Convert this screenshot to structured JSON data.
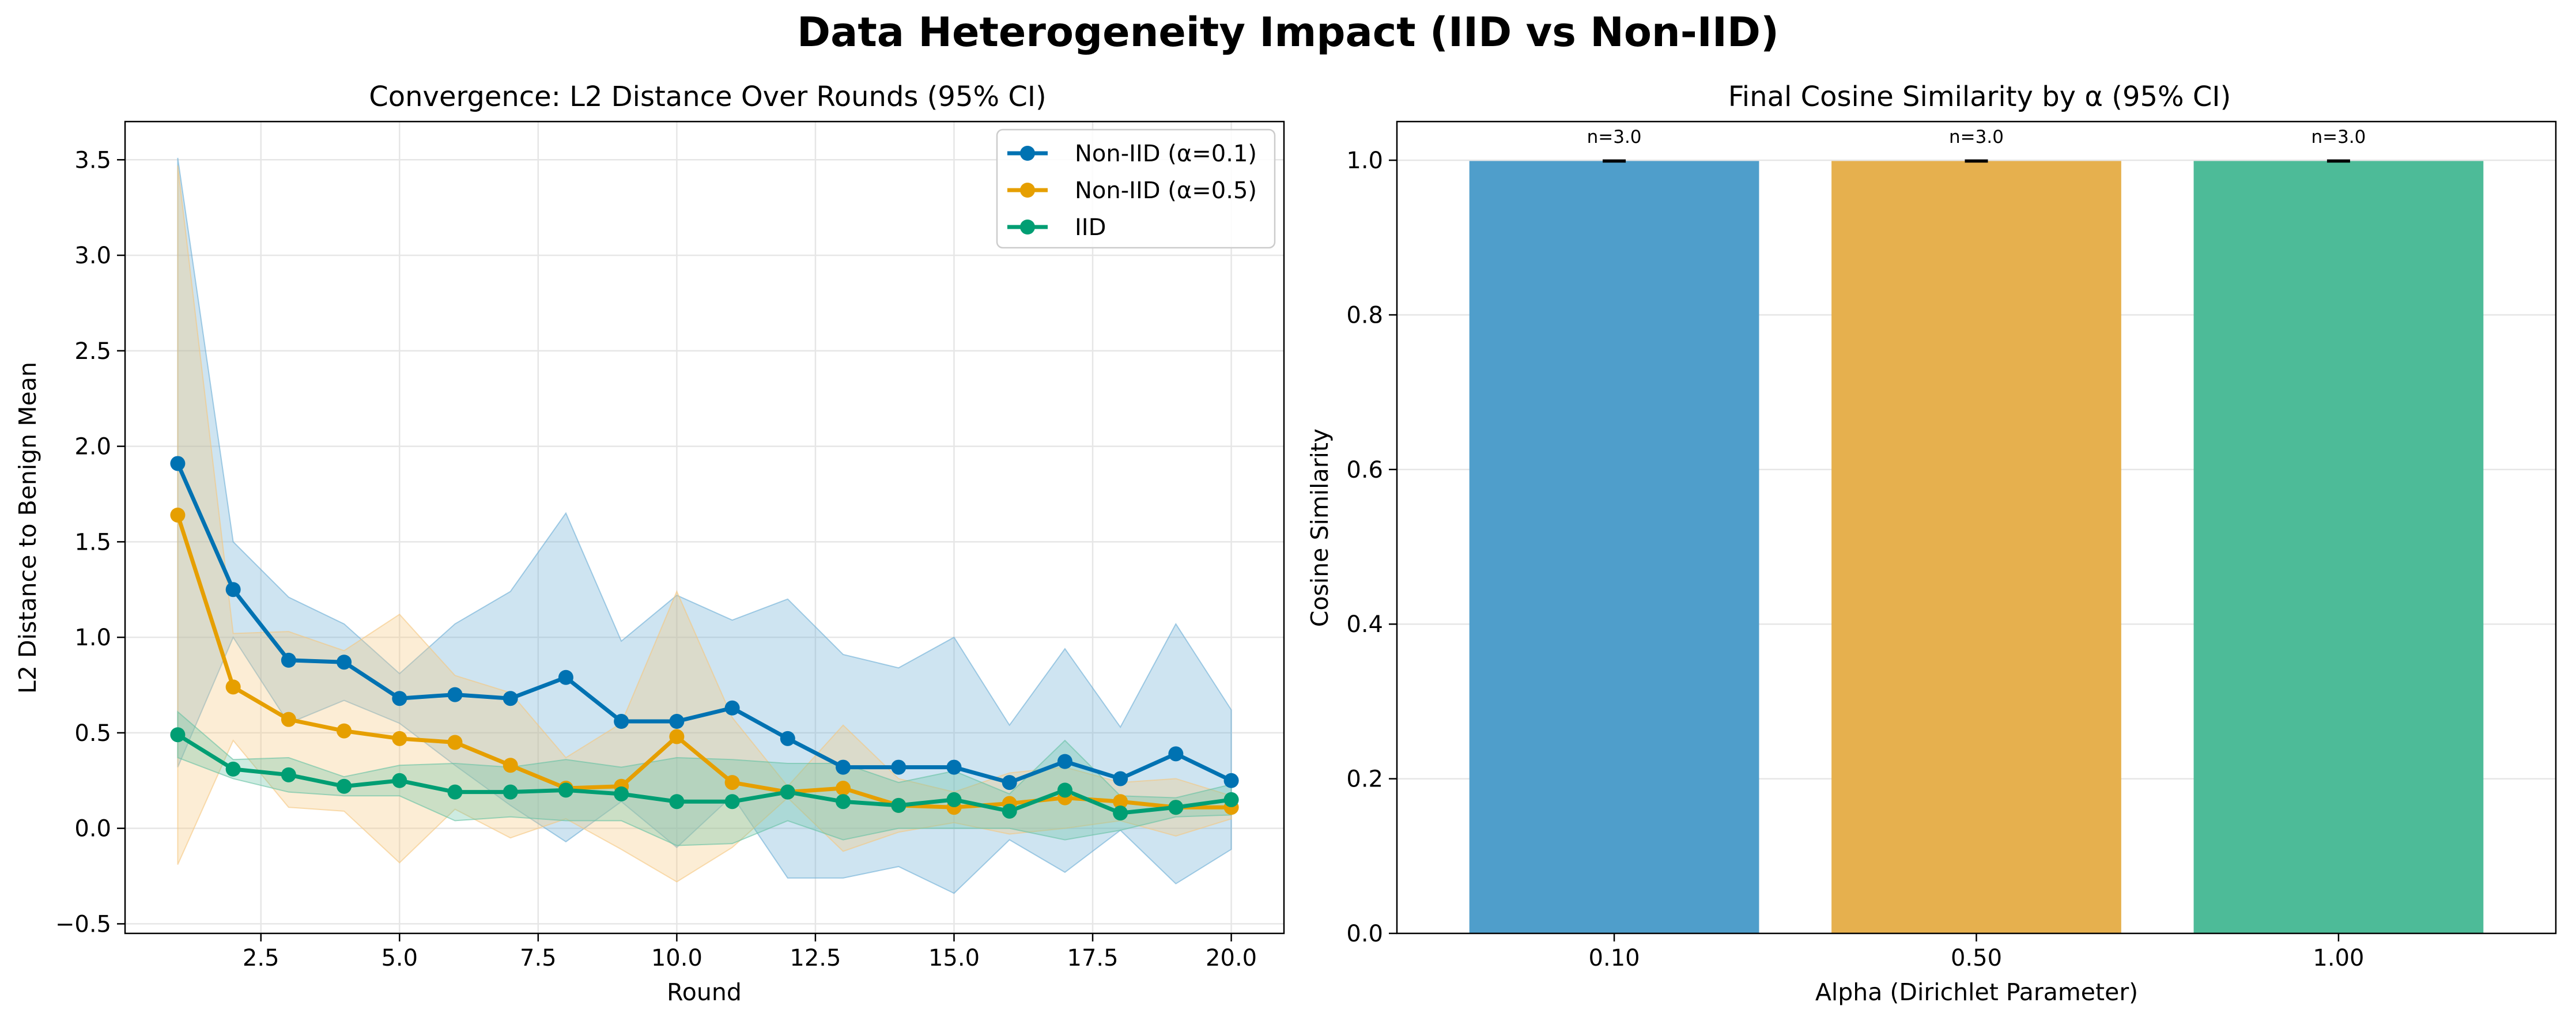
{
  "figure": {
    "suptitle": "Data Heterogeneity Impact (IID vs Non-IID)"
  },
  "chart_data": [
    {
      "type": "line",
      "title": "Convergence: L2 Distance Over Rounds (95% CI)",
      "xlabel": "Round",
      "ylabel": "L2 Distance to Benign Mean",
      "xlim": [
        0.05,
        20.95
      ],
      "ylim": [
        -0.55,
        3.7
      ],
      "xticks": [
        2.5,
        5.0,
        7.5,
        10.0,
        12.5,
        15.0,
        17.5,
        20.0
      ],
      "xtick_labels": [
        "2.5",
        "5.0",
        "7.5",
        "10.0",
        "12.5",
        "15.0",
        "17.5",
        "20.0"
      ],
      "yticks": [
        -0.5,
        0.0,
        0.5,
        1.0,
        1.5,
        2.0,
        2.5,
        3.0,
        3.5
      ],
      "ytick_labels": [
        "−0.5",
        "0.0",
        "0.5",
        "1.0",
        "1.5",
        "2.0",
        "2.5",
        "3.0",
        "3.5"
      ],
      "grid": true,
      "legend_position": "top-right",
      "x": [
        1,
        2,
        3,
        4,
        5,
        6,
        7,
        8,
        9,
        10,
        11,
        12,
        13,
        14,
        15,
        16,
        17,
        18,
        19,
        20
      ],
      "series": [
        {
          "name": "Non-IID (α=0.1)",
          "color": "#0072B2",
          "band_color": "#6baed6",
          "values": [
            1.91,
            1.25,
            0.88,
            0.87,
            0.68,
            0.7,
            0.68,
            0.79,
            0.56,
            0.56,
            0.63,
            0.47,
            0.32,
            0.32,
            0.32,
            0.24,
            0.35,
            0.26,
            0.39,
            0.25
          ],
          "lower": [
            0.32,
            1.0,
            0.55,
            0.67,
            0.55,
            0.33,
            0.12,
            -0.07,
            0.14,
            -0.1,
            0.17,
            -0.26,
            -0.26,
            -0.2,
            -0.34,
            -0.06,
            -0.23,
            -0.01,
            -0.29,
            -0.11
          ],
          "upper": [
            3.51,
            1.5,
            1.21,
            1.07,
            0.81,
            1.07,
            1.24,
            1.65,
            0.98,
            1.22,
            1.09,
            1.2,
            0.91,
            0.84,
            1.0,
            0.54,
            0.94,
            0.53,
            1.07,
            0.62
          ]
        },
        {
          "name": "Non-IID (α=0.5)",
          "color": "#E69F00",
          "band_color": "#f5c77e",
          "values": [
            1.64,
            0.74,
            0.57,
            0.51,
            0.47,
            0.45,
            0.33,
            0.21,
            0.22,
            0.48,
            0.24,
            0.19,
            0.21,
            0.12,
            0.11,
            0.13,
            0.16,
            0.14,
            0.11,
            0.11
          ],
          "lower": [
            -0.19,
            0.46,
            0.11,
            0.09,
            -0.18,
            0.1,
            -0.05,
            0.05,
            -0.11,
            -0.28,
            -0.1,
            0.16,
            -0.12,
            -0.02,
            0.03,
            -0.03,
            0.0,
            0.04,
            -0.04,
            0.05
          ],
          "upper": [
            3.47,
            1.02,
            1.03,
            0.93,
            1.12,
            0.8,
            0.71,
            0.37,
            0.55,
            1.24,
            0.58,
            0.22,
            0.54,
            0.26,
            0.19,
            0.29,
            0.32,
            0.24,
            0.26,
            0.17
          ]
        },
        {
          "name": "IID",
          "color": "#009E73",
          "band_color": "#66c2a4",
          "values": [
            0.49,
            0.31,
            0.28,
            0.22,
            0.25,
            0.19,
            0.19,
            0.2,
            0.18,
            0.14,
            0.14,
            0.19,
            0.14,
            0.12,
            0.15,
            0.09,
            0.2,
            0.08,
            0.11,
            0.15
          ],
          "lower": [
            0.37,
            0.26,
            0.19,
            0.17,
            0.17,
            0.04,
            0.06,
            0.04,
            0.04,
            -0.09,
            -0.08,
            0.04,
            -0.06,
            0.0,
            0.0,
            0.0,
            -0.06,
            -0.01,
            0.06,
            0.07
          ],
          "upper": [
            0.61,
            0.36,
            0.37,
            0.27,
            0.33,
            0.34,
            0.32,
            0.36,
            0.32,
            0.37,
            0.36,
            0.34,
            0.34,
            0.24,
            0.3,
            0.18,
            0.46,
            0.17,
            0.16,
            0.23
          ]
        }
      ]
    },
    {
      "type": "bar",
      "title": "Final Cosine Similarity by α (95% CI)",
      "xlabel": "Alpha (Dirichlet Parameter)",
      "ylabel": "Cosine Similarity",
      "categories": [
        "0.10",
        "0.50",
        "1.00"
      ],
      "values": [
        0.999,
        0.999,
        0.999
      ],
      "error": [
        0.001,
        0.001,
        0.001
      ],
      "colors": [
        "#4f9ecb",
        "#e6b04e",
        "#4dbb98"
      ],
      "data_labels": [
        "n=3.0",
        "n=3.0",
        "n=3.0"
      ],
      "ylim": [
        0.0,
        1.05
      ],
      "yticks": [
        0.0,
        0.2,
        0.4,
        0.6,
        0.8,
        1.0
      ],
      "ytick_labels": [
        "0.0",
        "0.2",
        "0.4",
        "0.6",
        "0.8",
        "1.0"
      ],
      "grid": true
    }
  ]
}
